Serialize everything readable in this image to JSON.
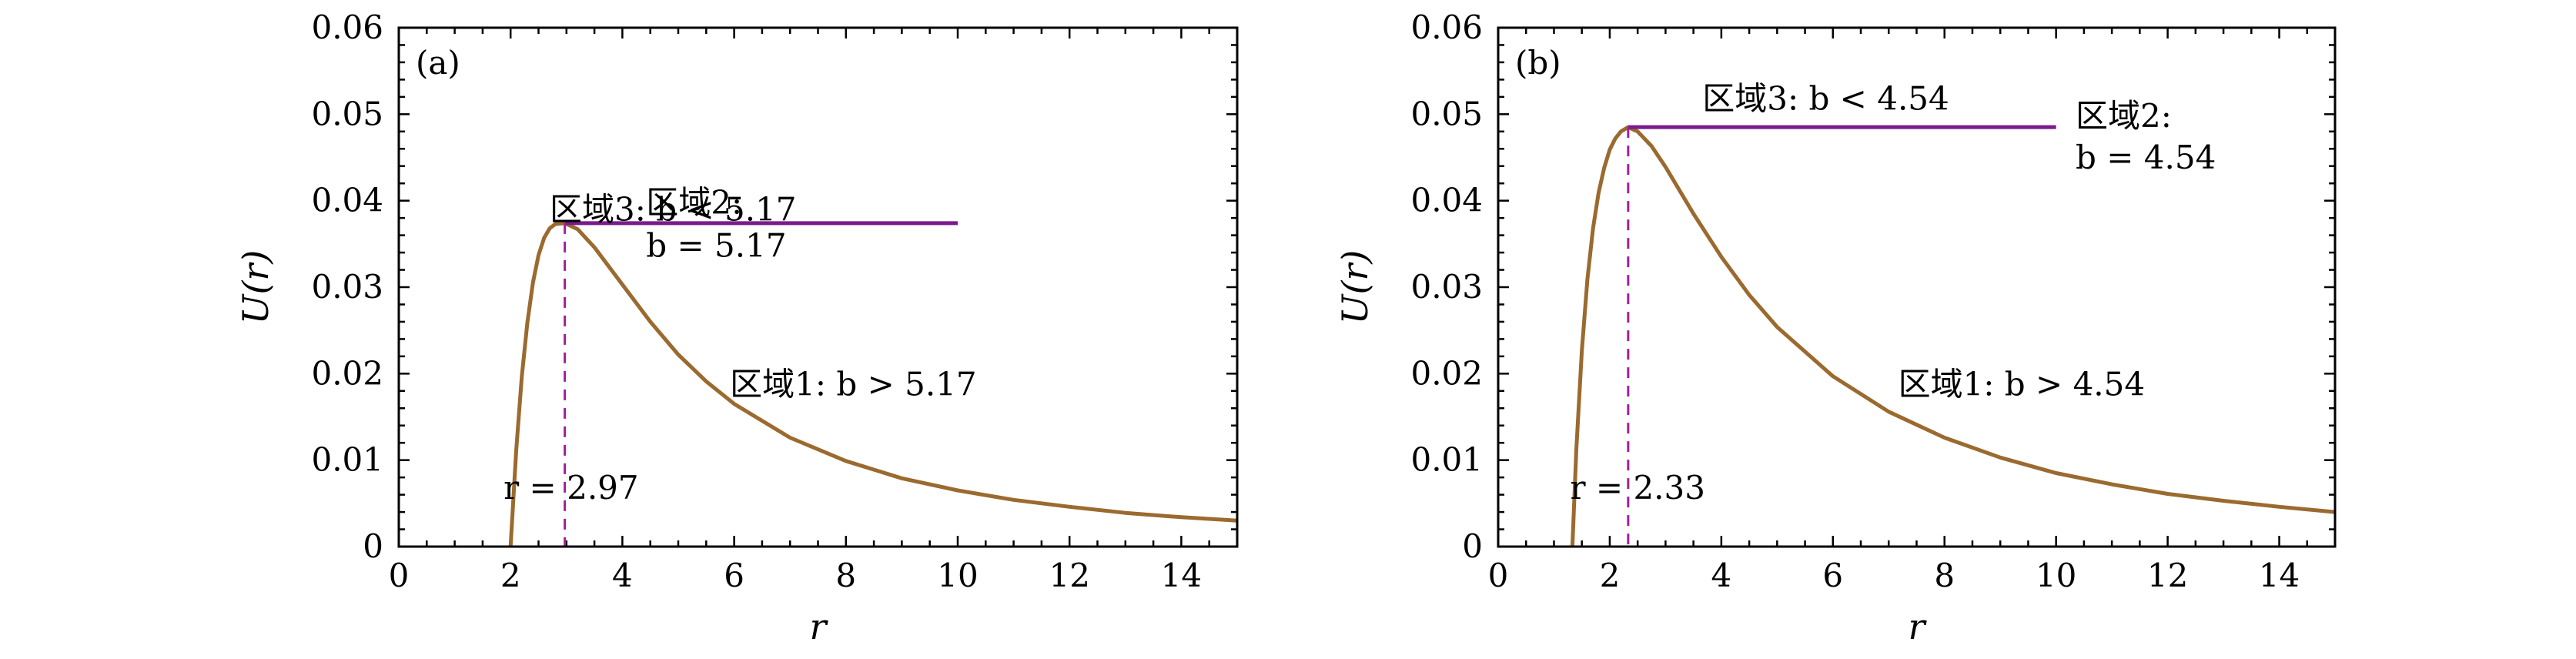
{
  "colors": {
    "curve": "#9b6a2f",
    "barrier": "#7a1b8c",
    "dashed": "#a020a0",
    "axis": "#000000"
  },
  "chart_data": [
    {
      "type": "line",
      "panel_label": "(a)",
      "xlabel": "r",
      "ylabel": "U(r)",
      "xlim": [
        0,
        15
      ],
      "ylim": [
        0,
        0.06
      ],
      "x_ticks": [
        "0",
        "2",
        "4",
        "6",
        "8",
        "10",
        "12",
        "14"
      ],
      "y_ticks": [
        "0",
        "0.01",
        "0.02",
        "0.03",
        "0.04",
        "0.05",
        "0.06"
      ],
      "grid": false,
      "series": [
        {
          "x": [
            2.0,
            2.1,
            2.2,
            2.3,
            2.4,
            2.5,
            2.6,
            2.7,
            2.8,
            2.97,
            3.2,
            3.5,
            4.0,
            4.5,
            5.0,
            5.5,
            6.0,
            7.0,
            8.0,
            9.0,
            10.0,
            11.0,
            12.0,
            13.0,
            14.0,
            15.0
          ],
          "y": [
            0.0,
            0.0111,
            0.0196,
            0.0259,
            0.0305,
            0.0337,
            0.0357,
            0.0368,
            0.0373,
            0.0374,
            0.0367,
            0.0346,
            0.0303,
            0.026,
            0.0222,
            0.0191,
            0.0165,
            0.0126,
            0.0099,
            0.0079,
            0.0065,
            0.0054,
            0.0046,
            0.0039,
            0.0034,
            0.003
          ]
        }
      ],
      "barrier": {
        "x_start": 2.97,
        "x_end": 10.0,
        "y": 0.0374
      },
      "peak_marker": {
        "x": 2.97
      },
      "annotations": {
        "region3": "区域3: b < 5.17",
        "region2_line1": "区域2:",
        "region2_line2": "b = 5.17",
        "region1": "区域1: b > 5.17",
        "peak": "r = 2.97"
      }
    },
    {
      "type": "line",
      "panel_label": "(b)",
      "xlabel": "r",
      "ylabel": "U(r)",
      "xlim": [
        0,
        15
      ],
      "ylim": [
        0,
        0.06
      ],
      "x_ticks": [
        "0",
        "2",
        "4",
        "6",
        "8",
        "10",
        "12",
        "14"
      ],
      "y_ticks": [
        "0",
        "0.01",
        "0.02",
        "0.03",
        "0.04",
        "0.05",
        "0.06"
      ],
      "grid": false,
      "series": [
        {
          "x": [
            1.33,
            1.4,
            1.5,
            1.6,
            1.7,
            1.8,
            1.9,
            2.0,
            2.1,
            2.2,
            2.33,
            2.5,
            2.75,
            3.0,
            3.5,
            4.0,
            4.5,
            5.0,
            6.0,
            7.0,
            8.0,
            9.0,
            10.0,
            11.0,
            12.0,
            13.0,
            14.0,
            15.0
          ],
          "y": [
            0.0,
            0.0112,
            0.0227,
            0.0309,
            0.0368,
            0.0409,
            0.0438,
            0.0459,
            0.0472,
            0.048,
            0.0485,
            0.048,
            0.0463,
            0.0439,
            0.0385,
            0.0335,
            0.0291,
            0.0254,
            0.0197,
            0.0156,
            0.0126,
            0.0103,
            0.0085,
            0.0072,
            0.0061,
            0.0053,
            0.0046,
            0.004
          ]
        }
      ],
      "barrier": {
        "x_start": 2.33,
        "x_end": 10.0,
        "y": 0.0485
      },
      "peak_marker": {
        "x": 2.33
      },
      "annotations": {
        "region3": "区域3: b < 4.54",
        "region2_line1": "区域2:",
        "region2_line2": "b = 4.54",
        "region1": "区域1: b > 4.54",
        "peak": "r = 2.33"
      }
    }
  ]
}
